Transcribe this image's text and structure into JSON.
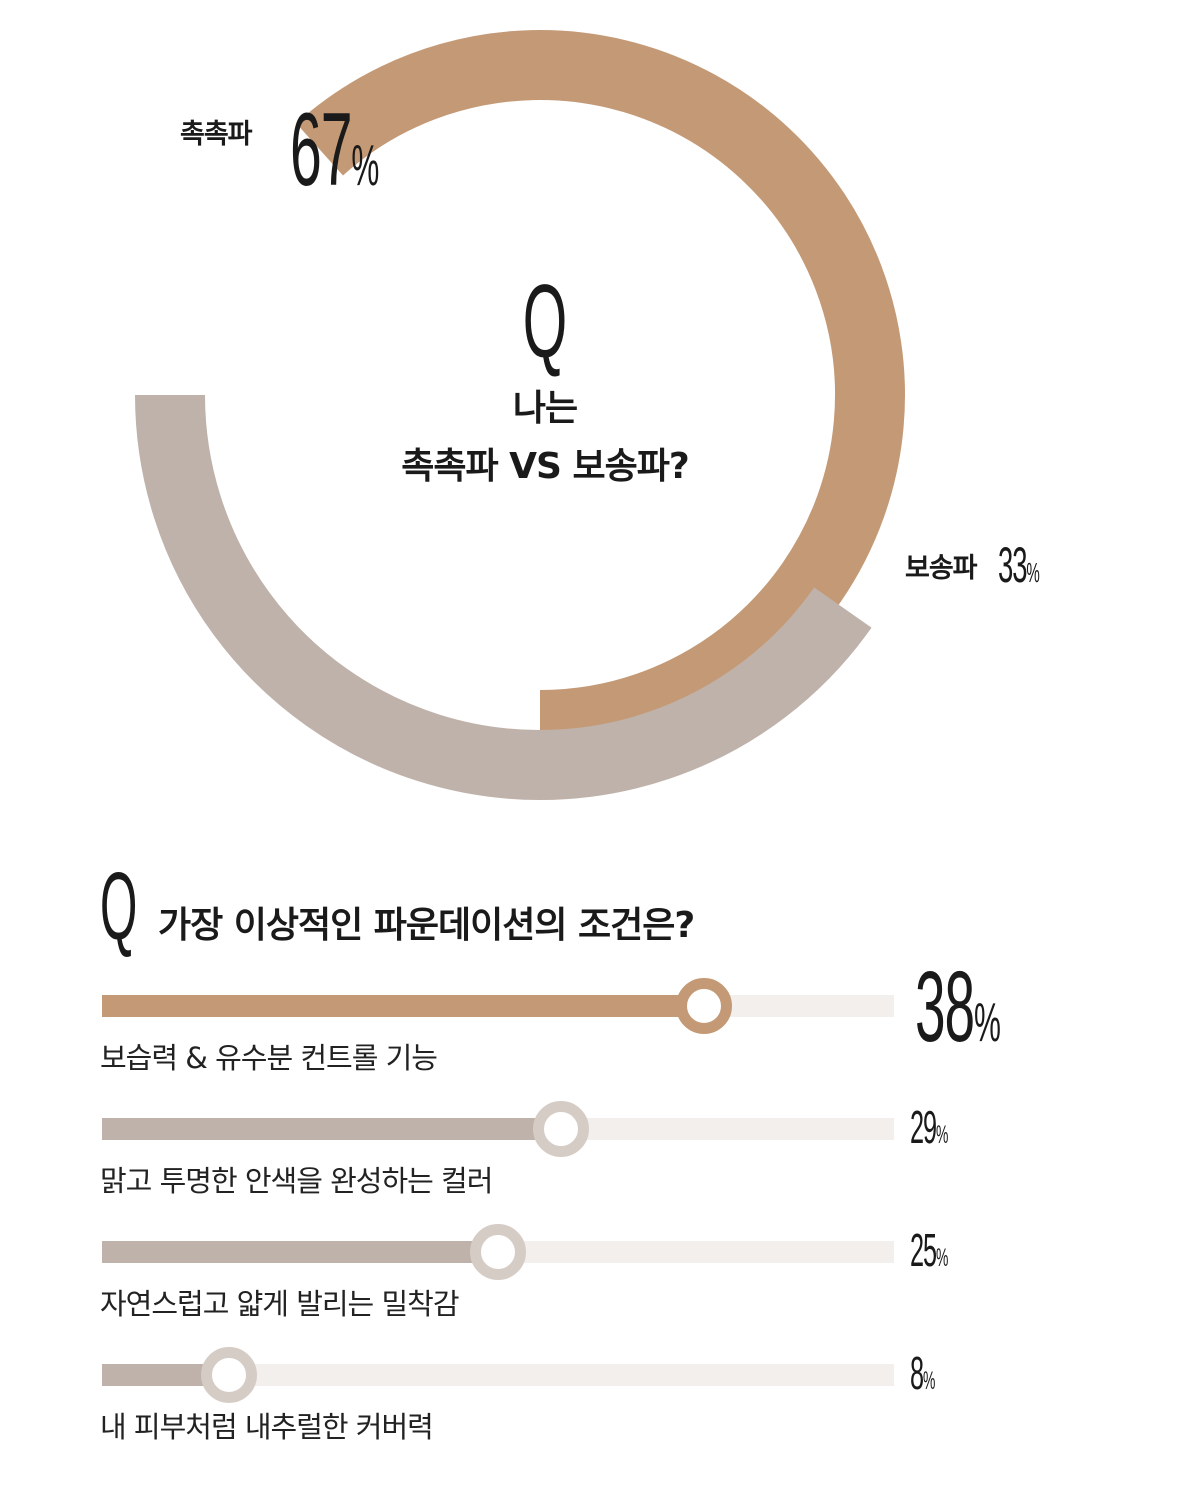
{
  "chart_data": [
    {
      "type": "pie",
      "title": "Q 나는 촉촉파 VS 보송파?",
      "question_mark": "Q",
      "title_lines": [
        "나는",
        "촉촉파 VS 보송파?"
      ],
      "slices": [
        {
          "label": "촉촉파",
          "value": 67,
          "color": "#c49a76"
        },
        {
          "label": "보송파",
          "value": 33,
          "color": "#bfb2aa"
        }
      ],
      "value_suffix": "%"
    },
    {
      "type": "bar",
      "orientation": "horizontal",
      "title": "가장 이상적인 파운데이션의 조건은?",
      "question_mark": "Q",
      "categories": [
        "보습력 & 유수분 컨트롤 기능",
        "맑고 투명한 안색을 완성하는 컬러",
        "자연스럽고 얇게 발리는 밀착감",
        "내 피부처럼 내추럴한 커버력"
      ],
      "values": [
        38,
        29,
        25,
        8
      ],
      "value_suffix": "%",
      "xlim": [
        0,
        50
      ],
      "colors": {
        "highlight": "#c49a76",
        "normal": "#bfb2aa",
        "track": "#f2efed",
        "knob_normal": "#d6ccc6"
      }
    }
  ]
}
